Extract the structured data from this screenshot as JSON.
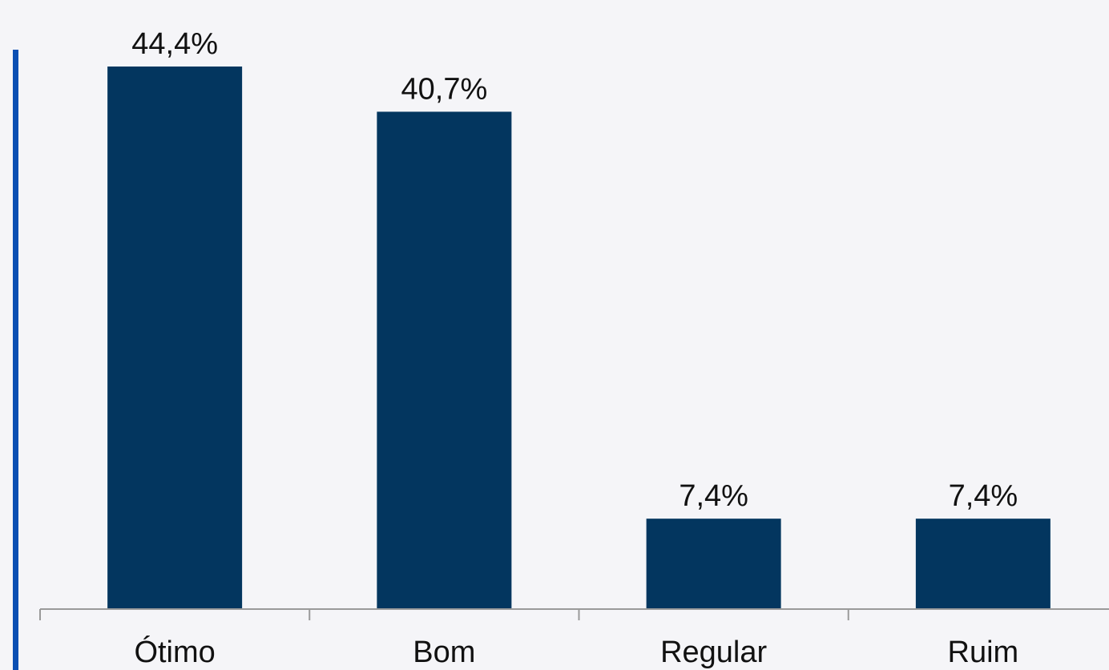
{
  "chart_data": {
    "type": "bar",
    "categories": [
      "Ótimo",
      "Bom",
      "Regular",
      "Ruim"
    ],
    "values": [
      44.4,
      40.7,
      7.4,
      7.4
    ],
    "data_labels": [
      "44,4%",
      "40,7%",
      "7,4%",
      "7,4%"
    ],
    "title": "",
    "xlabel": "",
    "ylabel": "",
    "ylim": [
      0,
      44.4
    ],
    "grid": false,
    "legend": "none",
    "bar_color": "#03365f",
    "axis_color": "#9a9a9a"
  },
  "colors": {
    "background": "#f5f5f8",
    "accent": "#0b4fb3"
  }
}
